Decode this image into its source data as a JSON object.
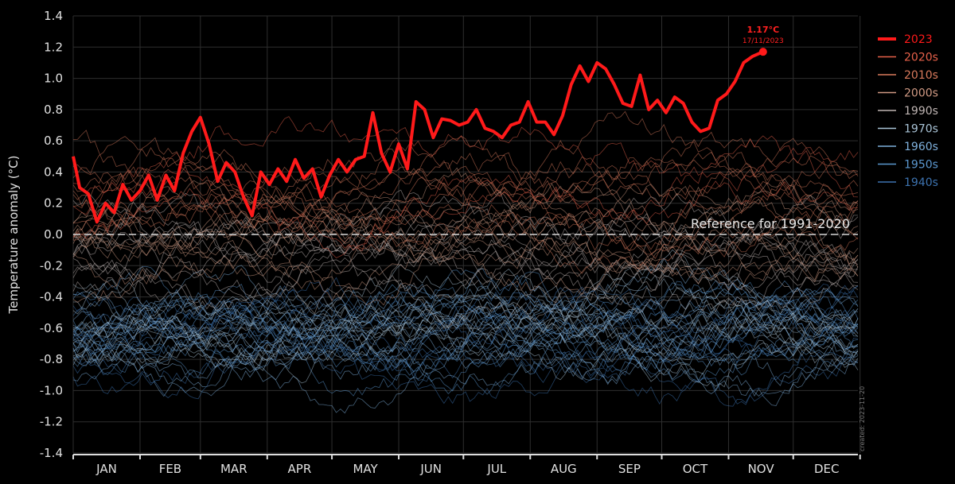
{
  "chart_data": {
    "type": "line",
    "ylabel": "Temperature anomaly (°C)",
    "ylim": [
      -1.4,
      1.4
    ],
    "y_ticks": [
      "1.4",
      "1.2",
      "1.0",
      "0.8",
      "0.6",
      "0.4",
      "0.2",
      "0.0",
      "-0.2",
      "-0.4",
      "-0.6",
      "-0.8",
      "-1.0",
      "-1.2",
      "-1.4"
    ],
    "y_tick_values": [
      1.4,
      1.2,
      1.0,
      0.8,
      0.6,
      0.4,
      0.2,
      0.0,
      -0.2,
      -0.4,
      -0.6,
      -0.8,
      -1.0,
      -1.2,
      -1.4
    ],
    "months": [
      "JAN",
      "FEB",
      "MAR",
      "APR",
      "MAY",
      "JUN",
      "JUL",
      "AUG",
      "SEP",
      "OCT",
      "NOV",
      "DEC"
    ],
    "grid": true,
    "legend_position": "top-right",
    "reference_label": "Reference for 1991-2020",
    "reference_value": 0.0,
    "annotation": {
      "value_label": "1.17°C",
      "date_label": "17/11/2023",
      "day": 321,
      "value": 1.17
    },
    "created_label": "created: 2023-11-20",
    "colors": {
      "2023": "#ff1a1a",
      "2020s": "#e8614a",
      "2010s": "#d97a5c",
      "2000s": "#d09a84",
      "1990s": "#bfb5b3",
      "1970s": "#a9c3d6",
      "1960s": "#7fb1dd",
      "1950s": "#5b97cf",
      "1940s": "#3d73b0"
    },
    "series": [
      {
        "name": "2023",
        "x": [
          1,
          4,
          8,
          12,
          16,
          20,
          24,
          28,
          32,
          36,
          40,
          44,
          48,
          52,
          56,
          60,
          64,
          68,
          72,
          76,
          80,
          84,
          88,
          92,
          96,
          100,
          104,
          108,
          112,
          116,
          120,
          124,
          128,
          132,
          136,
          140,
          144,
          148,
          152,
          156,
          160,
          164,
          168,
          172,
          176,
          180,
          184,
          188,
          192,
          196,
          200,
          204,
          208,
          212,
          216,
          220,
          224,
          228,
          232,
          236,
          240,
          244,
          248,
          252,
          256,
          260,
          264,
          268,
          272,
          276,
          280,
          284,
          288,
          292,
          296,
          300,
          304,
          308,
          312,
          316,
          321
        ],
        "values": [
          0.5,
          0.3,
          0.26,
          0.08,
          0.2,
          0.14,
          0.32,
          0.22,
          0.28,
          0.38,
          0.22,
          0.38,
          0.28,
          0.52,
          0.66,
          0.75,
          0.58,
          0.34,
          0.46,
          0.4,
          0.24,
          0.12,
          0.4,
          0.32,
          0.42,
          0.34,
          0.48,
          0.36,
          0.42,
          0.24,
          0.38,
          0.48,
          0.4,
          0.48,
          0.5,
          0.78,
          0.52,
          0.4,
          0.58,
          0.42,
          0.85,
          0.8,
          0.62,
          0.74,
          0.73,
          0.7,
          0.72,
          0.8,
          0.68,
          0.66,
          0.62,
          0.7,
          0.72,
          0.85,
          0.72,
          0.72,
          0.64,
          0.76,
          0.96,
          1.08,
          0.98,
          1.1,
          1.06,
          0.96,
          0.84,
          0.82,
          1.02,
          0.8,
          0.86,
          0.78,
          0.88,
          0.84,
          0.72,
          0.66,
          0.68,
          0.86,
          0.9,
          0.98,
          1.1,
          1.14,
          1.17
        ]
      },
      {
        "name": "2020s",
        "base": 0.38,
        "count": 3
      },
      {
        "name": "2010s",
        "base": 0.22,
        "count": 10
      },
      {
        "name": "2000s",
        "base": 0.04,
        "count": 10
      },
      {
        "name": "1990s",
        "base": -0.18,
        "count": 10
      },
      {
        "name": "1970s",
        "base": -0.5,
        "count": 10
      },
      {
        "name": "1960s",
        "base": -0.62,
        "count": 10
      },
      {
        "name": "1950s",
        "base": -0.7,
        "count": 10
      },
      {
        "name": "1940s",
        "base": -0.72,
        "count": 10
      }
    ]
  }
}
